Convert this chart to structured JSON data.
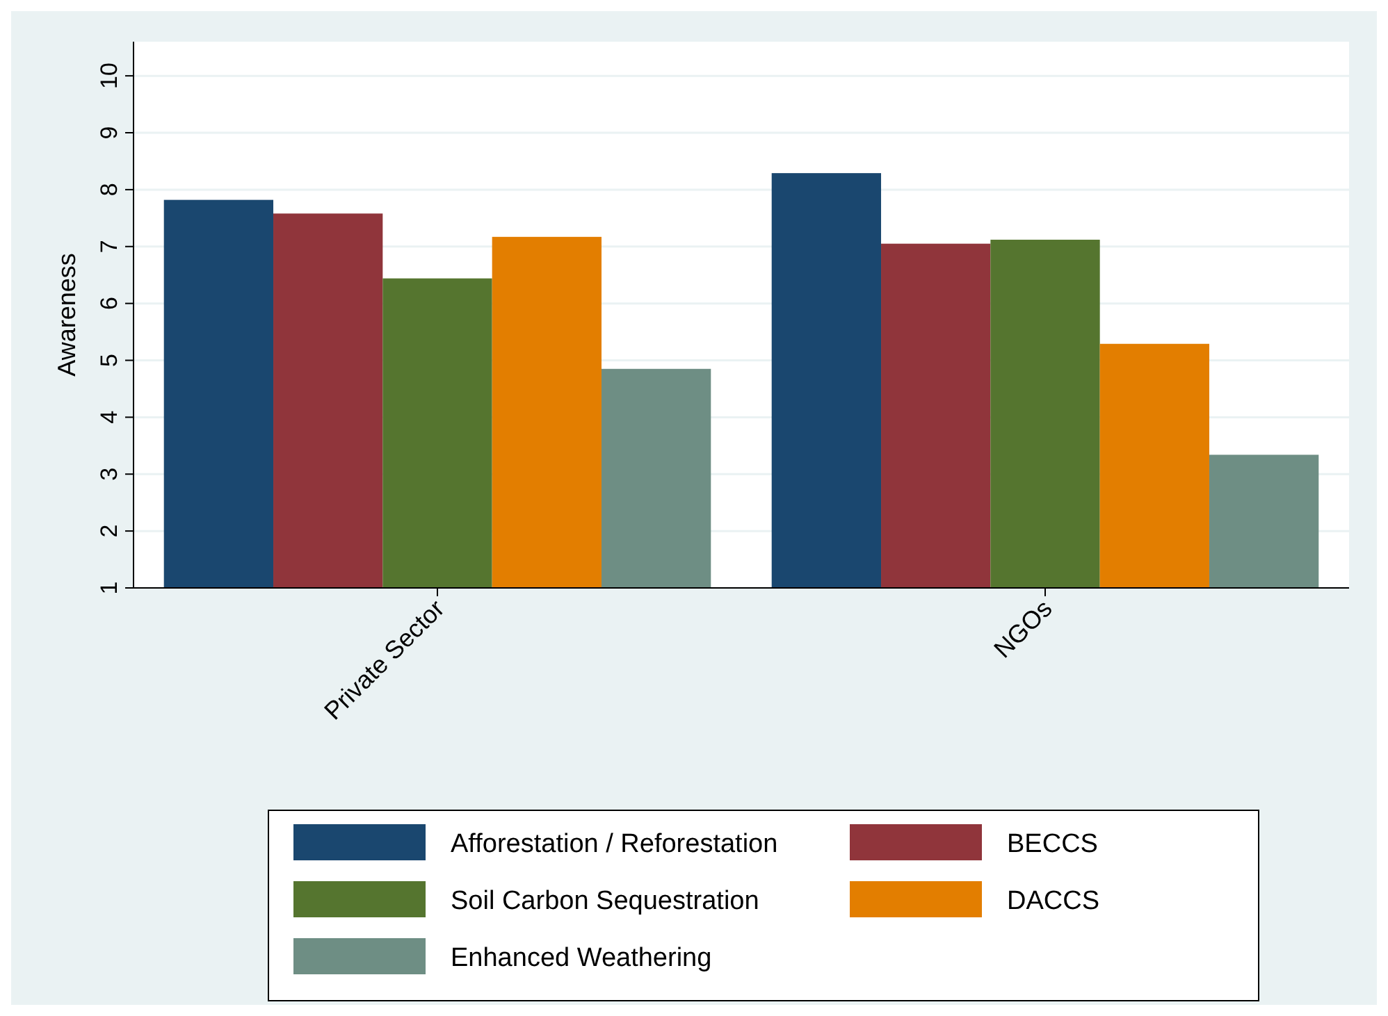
{
  "chart_data": {
    "type": "bar",
    "ylabel": "Awareness",
    "categories": [
      "Private Sector",
      "NGOs"
    ],
    "series": [
      {
        "name": "Afforestation / Reforestation",
        "color": "#1a476f",
        "values": [
          7.82,
          8.29
        ]
      },
      {
        "name": "BECCS",
        "color": "#90353b",
        "values": [
          7.58,
          7.05
        ]
      },
      {
        "name": "Soil Carbon Sequestration",
        "color": "#55752f",
        "values": [
          6.44,
          7.12
        ]
      },
      {
        "name": "DACCS",
        "color": "#e37e00",
        "values": [
          7.17,
          5.29
        ]
      },
      {
        "name": "Enhanced Weathering",
        "color": "#6e8e84",
        "values": [
          4.85,
          3.34
        ]
      }
    ],
    "ylim": [
      1,
      10.6
    ],
    "yticks": [
      1,
      2,
      3,
      4,
      5,
      6,
      7,
      8,
      9,
      10
    ],
    "grid": "y",
    "legend": "bottom"
  }
}
